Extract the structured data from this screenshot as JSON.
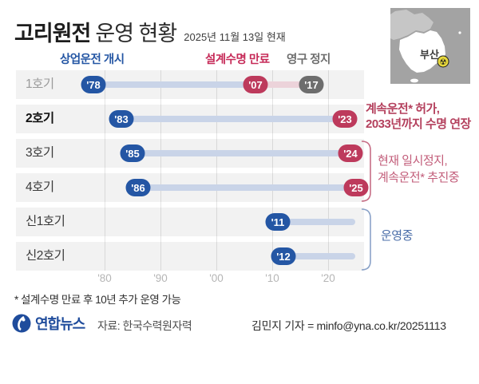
{
  "header": {
    "title_bold": "고리원전",
    "title_rest": "운영 현황",
    "as_of": "2025년 11월 13일 현재"
  },
  "legend": {
    "start": "상업운전 개시",
    "design_expire": "설계수명 만료",
    "permanent_stop": "영구 정지"
  },
  "map": {
    "region_label": "부산",
    "marker": "radiation-symbol"
  },
  "chart_data": {
    "type": "gantt-timeline",
    "title": "고리원전 운영 현황",
    "as_of": "2025년 11월 13일 현재",
    "x_axis": {
      "ticks": [
        {
          "label": "'80",
          "year": 1980
        },
        {
          "label": "'90",
          "year": 1990
        },
        {
          "label": "'00",
          "year": 2000
        },
        {
          "label": "'10",
          "year": 2010
        },
        {
          "label": "'20",
          "year": 2020
        }
      ],
      "ongoing_bar_end_year": 2025
    },
    "rows": [
      {
        "label": "1호기",
        "style": "muted",
        "start_year": 1978,
        "start_label": "'78",
        "expire_year": 2007,
        "expire_label": "'07",
        "stop_year": 2017,
        "stop_label": "'17"
      },
      {
        "label": "2호기",
        "style": "bold",
        "start_year": 1983,
        "start_label": "'83",
        "expire_year": 2023,
        "expire_label": "'23"
      },
      {
        "label": "3호기",
        "style": "normal",
        "start_year": 1985,
        "start_label": "'85",
        "expire_year": 2024,
        "expire_label": "'24"
      },
      {
        "label": "4호기",
        "style": "normal",
        "start_year": 1986,
        "start_label": "'86",
        "expire_year": 2025,
        "expire_label": "'25"
      },
      {
        "label": "신1호기",
        "style": "normal",
        "start_year": 2011,
        "start_label": "'11",
        "ongoing": true
      },
      {
        "label": "신2호기",
        "style": "normal",
        "start_year": 2012,
        "start_label": "'12",
        "ongoing": true
      }
    ]
  },
  "annotations": {
    "unit2_line1": "계속운전* 허가,",
    "unit2_line2": "2033년까지 수명 연장",
    "unit34_line1": "현재 일시정지,",
    "unit34_line2": "계속운전* 추진중",
    "shin12": "운영중"
  },
  "footnote": "* 설계수명 만료 후 10년 추가 운영 가능",
  "footer": {
    "brand": "연합뉴스",
    "source": "자료: 한국수력원자력",
    "byline": "김민지 기자 = minfo@yna.co.kr/20251113"
  },
  "colors": {
    "blue": "#2456a4",
    "red": "#bd3a5c",
    "legend_red": "#c62a58",
    "anno_red": "#b4405d",
    "bar_blue": "#c9d4e8",
    "bar_pink": "#ecd3da",
    "stop_gray": "#6d6d6d",
    "bracket_red": "#c66d85",
    "bracket_blue": "#8aa2c8"
  }
}
